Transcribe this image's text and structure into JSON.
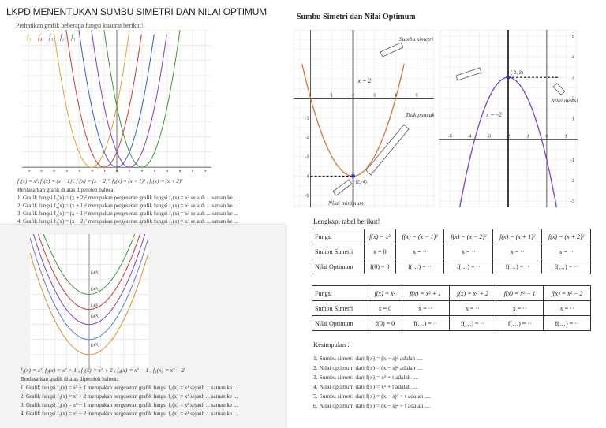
{
  "top_left": {
    "title": "LKPD MENENTUKAN SUMBU SIMETRI DAN NILAI OPTIMUM",
    "intro": "Perhatikan grafik beberapa fungsi kuadrat berikut!",
    "legend": [
      "f₅",
      "f₄",
      "f₁",
      "f₂",
      "f₃"
    ],
    "x_ticks": [
      "-7",
      "-6",
      "-5",
      "-4",
      "-3",
      "-2",
      "-1",
      "0",
      "1",
      "2",
      "3",
      "4",
      "5",
      "6",
      "7"
    ],
    "functions_line": "f₁(x) = x², f₂(x) = (x − 1)², f₃(x) = (x − 2)², f₄(x) = (x + 1)² , f₅(x) = (x + 2)²",
    "based_on": "Berdasarkan grafik di atas diperoleh bahwa:",
    "statements": [
      "1.   Grafik fungsi f₅(x) = (x + 2)² merupakan pergeseran grafik fungsi f₁(x) = x² sejauh ... satuan ke ...",
      "2.   Grafik fungsi f₄(x) = (x + 1)² merupakan pergeseran grafik fungsi f₁(x) = x² sejauh ... satuan ke ...",
      "3.   Grafik fungsi f₂(x) = (x − 1)² merupakan pergeseran grafik fungsi f₁(x) = x² sejauh ... satuan ke ...",
      "4.   Grafik fungsi f₃(x) = (x − 2)² merupakan pergeseran grafik fungsi f₁(x) = x² sejauh ... satuan ke ..."
    ]
  },
  "bottom_left": {
    "curve_labels": [
      "f₄(x)",
      "f₃(x)",
      "f₂(x)",
      "f₁(x)",
      "f₅(x)"
    ],
    "functions_line": "f₁(x) = x², f₂(x) = x² + 1 , f₃(x) = x² + 2 , f₄(x) = x² − 1 , f₅(x) = x² − 2",
    "based_on": "Berdasarkan grafik di atas diperoleh bahwa:",
    "statements": [
      "1.   Grafik fungsi f₂(x) = x² + 1 merupakan pergeseran grafik fungsi f₁(x) = x² sejauh ... satuan ke ...",
      "2.   Grafik fungsi f₃(x) = x² + 2 merupakan pergeseran grafik fungsi f₁(x) = x² sejauh ... satuan ke ...",
      "3.   Grafik fungsi f₄(x) = x² − 1 merupakan pergeseran grafik fungsi f₁(x) = x² sejauh ... satuan ke ...",
      "4.   Grafik fungsi f₅(x) = x² − 2 merupakan pergeseran grafik fungsi f₁(x) = x² sejauh ... satuan ke ..."
    ]
  },
  "top_right": {
    "title": "Sumbu Simetri dan Nilai Optimum",
    "left_graph": {
      "axis_line": "x = 2",
      "vertex": "(2,-4)",
      "note_min": "Nilai minimum",
      "note_vertex": "Titik puncak",
      "x_ticks": [
        "1",
        "2",
        "3",
        "4",
        "5"
      ],
      "y_ticks": [
        "-1",
        "-2",
        "-3",
        "-4",
        "-5"
      ]
    },
    "right_graph": {
      "axis_line": "x = -2",
      "vertex": "(-2, 3)",
      "note_axis": "Sumbu simetri",
      "note_max": "Nilai maksimum",
      "x_ticks": [
        "-5",
        "-4",
        "-3",
        "-2",
        "-1",
        "0",
        "1"
      ],
      "y_ticks": [
        "5",
        "4",
        "3",
        "2",
        "1",
        "-1",
        "-2",
        "-3"
      ]
    }
  },
  "bottom_right": {
    "heading": "Lengkapi tabel berikut!",
    "table1": {
      "header": [
        "Fungsi",
        "f(x) = x²",
        "f(x) = (x − 1)²",
        "f(x) = (x − 2)²",
        "f(x) = (x + 1)²",
        "f(x) = (x + 2)²"
      ],
      "rows": [
        [
          "Sumbu Simetri",
          "x = 0",
          "x = ··",
          "x = ··",
          "x = ··",
          "x = ··"
        ],
        [
          "Nilai Optimum",
          "f(0) = 0",
          "f(…) = ··",
          "f(…) = ··",
          "f(…) = ··",
          "f(…) = ··"
        ]
      ]
    },
    "table2": {
      "header": [
        "Fungsi",
        "f(x) = x²",
        "f(x) = x² + 1",
        "f(x) = x² + 2",
        "f(x) = x² − 1",
        "f(x) = x² − 2"
      ],
      "rows": [
        [
          "Sumbu Simetri",
          "x = 0",
          "x = ··",
          "x = ··",
          "x = ··",
          "x = ··"
        ],
        [
          "Nilai Optimum",
          "f(0) = 0",
          "f(…) = ··",
          "f(…) = ··",
          "f(…) = ··",
          "f(…) = ··"
        ]
      ]
    },
    "conclusion_title": "Kesimpulan :",
    "conclusions": [
      "1.   Sumbu simetri dari f(x) = (x − s)² adalah ....",
      "2.   Nilai optimum dari f(x) = (x − s)² adalah ....",
      "3.   Sumbu simetri dari f(x) = x² + t adalah ....",
      "4.   Nilai optimum dari f(x) = x² + t adalah ....",
      "5.   Sumbu simetri dari f(x) = (x − s)² + t adalah ....",
      "6.   Nilai optimum dari f(x) = (x − s)² + t adalah ...."
    ]
  },
  "colors": {
    "orange": "#d9763a",
    "purple": "#7a3fc8",
    "green": "#3a9a3a",
    "red": "#c83a3a",
    "blue": "#3a5ac8",
    "grid": "#d8d8d8"
  }
}
